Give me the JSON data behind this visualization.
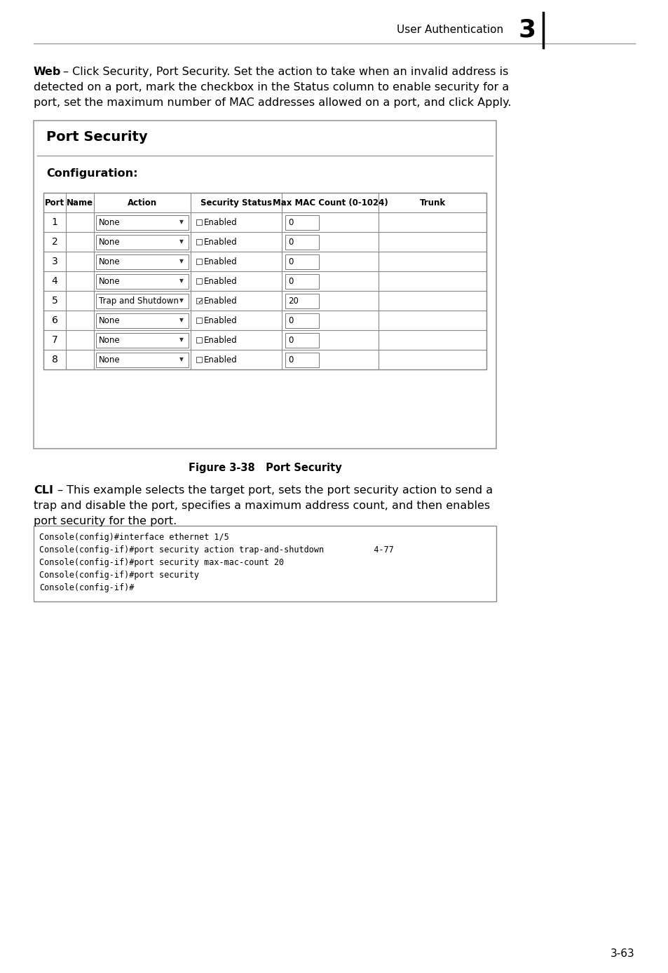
{
  "page_header_text": "User Authentication",
  "page_number": "3",
  "page_number_bottom": "3-63",
  "web_text_line1": "Web – Click Security, Port Security. Set the action to take when an invalid address is",
  "web_text_line2": "detected on a port, mark the checkbox in the Status column to enable security for a",
  "web_text_line3": "port, set the maximum number of MAC addresses allowed on a port, and click Apply.",
  "panel_title": "Port Security",
  "config_label": "Configuration:",
  "table_headers": [
    "Port",
    "Name",
    "Action",
    "Security Status",
    "Max MAC Count (0-1024)",
    "Trunk"
  ],
  "table_rows": [
    {
      "port": "1",
      "name": "",
      "action": "None",
      "security_checked": false,
      "max_mac": "0",
      "trunk": ""
    },
    {
      "port": "2",
      "name": "",
      "action": "None",
      "security_checked": false,
      "max_mac": "0",
      "trunk": ""
    },
    {
      "port": "3",
      "name": "",
      "action": "None",
      "security_checked": false,
      "max_mac": "0",
      "trunk": ""
    },
    {
      "port": "4",
      "name": "",
      "action": "None",
      "security_checked": false,
      "max_mac": "0",
      "trunk": ""
    },
    {
      "port": "5",
      "name": "",
      "action": "Trap and Shutdown",
      "security_checked": true,
      "max_mac": "20",
      "trunk": ""
    },
    {
      "port": "6",
      "name": "",
      "action": "None",
      "security_checked": false,
      "max_mac": "0",
      "trunk": ""
    },
    {
      "port": "7",
      "name": "",
      "action": "None",
      "security_checked": false,
      "max_mac": "0",
      "trunk": ""
    },
    {
      "port": "8",
      "name": "",
      "action": "None",
      "security_checked": false,
      "max_mac": "0",
      "trunk": ""
    }
  ],
  "figure_caption": "Figure 3-38   Port Security",
  "cli_text_line1": "CLI – This example selects the target port, sets the port security action to send a",
  "cli_text_line2": "trap and disable the port, specifies a maximum address count, and then enables",
  "cli_text_line3": "port security for the port.",
  "cli_code_line1": "Console(config)#interface ethernet 1/5",
  "cli_code_line2": "Console(config-if)#port security action trap-and-shutdown          4-77",
  "cli_code_line3": "Console(config-if)#port security max-mac-count 20",
  "cli_code_line4": "Console(config-if)#port security",
  "cli_code_line5": "Console(config-if)#",
  "bg_color": "#ffffff",
  "panel_border": "#999999",
  "table_border": "#888888",
  "code_bg": "#ffffff",
  "code_border": "#888888"
}
